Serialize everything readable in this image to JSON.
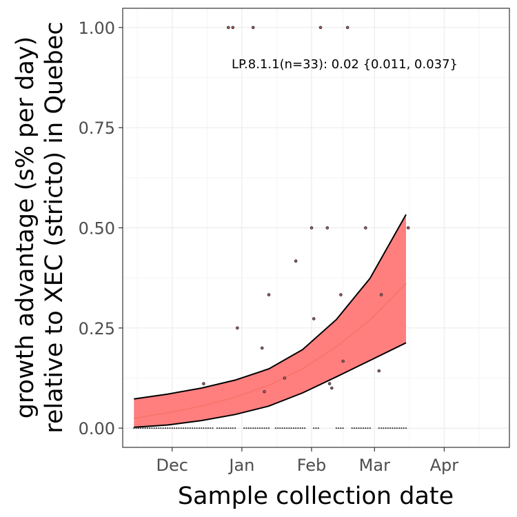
{
  "chart_data": {
    "type": "scatter",
    "xlabel": "Sample collection date",
    "ylabel_line1": "growth advantage (s% per day)",
    "ylabel_line2": "relative to XEC (stricto) in Quebec",
    "annotation": "LP.8.1.1(n=33): 0.02 {0.011, 0.037}",
    "x_axis_type": "date",
    "xlim": [
      "2024-11-09",
      "2025-04-30"
    ],
    "ylim": [
      -0.048,
      1.048
    ],
    "x_ticks": [
      {
        "date": "2024-12-01",
        "label": "Dec"
      },
      {
        "date": "2025-01-01",
        "label": "Jan"
      },
      {
        "date": "2025-02-01",
        "label": "Feb"
      },
      {
        "date": "2025-03-01",
        "label": "Mar"
      },
      {
        "date": "2025-04-01",
        "label": "Apr"
      }
    ],
    "y_ticks": [
      {
        "value": 0.0,
        "label": "0.00"
      },
      {
        "value": 0.25,
        "label": "0.25"
      },
      {
        "value": 0.5,
        "label": "0.50"
      },
      {
        "value": 0.75,
        "label": "0.75"
      },
      {
        "value": 1.0,
        "label": "1.00"
      }
    ],
    "grid": true,
    "fit": {
      "color": "#f8766d",
      "ribbon_color": "#ff7f7f",
      "x": [
        "2024-11-14",
        "2024-11-29",
        "2024-12-14",
        "2024-12-29",
        "2025-01-13",
        "2025-01-28",
        "2025-02-12",
        "2025-02-27",
        "2025-03-15"
      ],
      "y": [
        0.025,
        0.038,
        0.055,
        0.077,
        0.107,
        0.148,
        0.203,
        0.27,
        0.361
      ],
      "lower": [
        0.002,
        0.008,
        0.019,
        0.034,
        0.055,
        0.088,
        0.128,
        0.169,
        0.213
      ],
      "upper": [
        0.073,
        0.085,
        0.1,
        0.12,
        0.148,
        0.196,
        0.271,
        0.374,
        0.533
      ]
    },
    "points": [
      {
        "x": "2024-12-26",
        "y": 1.0
      },
      {
        "x": "2024-12-28",
        "y": 1.0
      },
      {
        "x": "2025-01-06",
        "y": 1.0
      },
      {
        "x": "2025-02-05",
        "y": 1.0
      },
      {
        "x": "2025-02-17",
        "y": 1.0
      },
      {
        "x": "2025-02-01",
        "y": 0.5
      },
      {
        "x": "2025-02-08",
        "y": 0.5
      },
      {
        "x": "2025-02-25",
        "y": 0.5
      },
      {
        "x": "2025-03-16",
        "y": 0.5
      },
      {
        "x": "2025-01-25",
        "y": 0.417
      },
      {
        "x": "2025-01-13",
        "y": 0.333
      },
      {
        "x": "2025-02-14",
        "y": 0.333
      },
      {
        "x": "2025-03-04",
        "y": 0.333
      },
      {
        "x": "2025-02-02",
        "y": 0.273
      },
      {
        "x": "2024-12-30",
        "y": 0.25
      },
      {
        "x": "2025-01-10",
        "y": 0.2
      },
      {
        "x": "2025-02-15",
        "y": 0.167
      },
      {
        "x": "2025-03-03",
        "y": 0.143
      },
      {
        "x": "2025-01-20",
        "y": 0.125
      },
      {
        "x": "2024-12-15",
        "y": 0.111
      },
      {
        "x": "2025-02-09",
        "y": 0.111
      },
      {
        "x": "2025-02-10",
        "y": 0.1
      },
      {
        "x": "2025-01-11",
        "y": 0.091
      }
    ],
    "zero_runs": [
      [
        "2024-11-14",
        "2024-12-19"
      ],
      [
        "2024-12-21",
        "2024-12-29"
      ],
      [
        "2025-01-02",
        "2025-01-13"
      ],
      [
        "2025-01-16",
        "2025-01-29"
      ],
      [
        "2025-02-02",
        "2025-02-04"
      ],
      [
        "2025-02-12",
        "2025-02-15"
      ],
      [
        "2025-02-19",
        "2025-02-27"
      ],
      [
        "2025-03-03",
        "2025-03-15"
      ]
    ]
  }
}
